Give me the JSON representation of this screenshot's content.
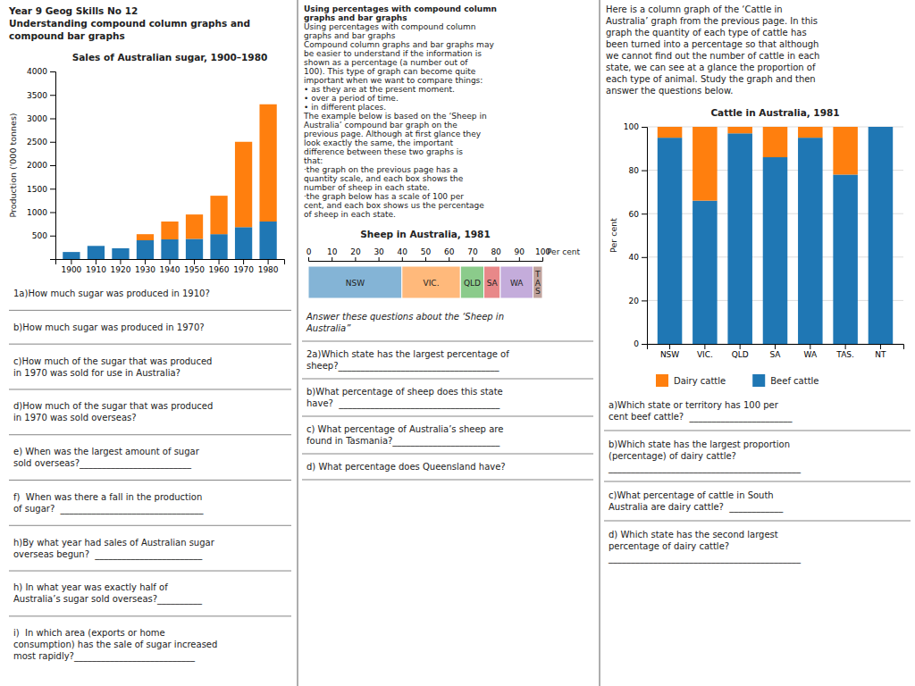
{
  "header": [
    "Year 9 Geog Skills No 12",
    "Understanding compound column graphs and",
    "compound bar graphs"
  ],
  "chart_data": [
    {
      "type": "bar",
      "stacked": true,
      "title": "Sales of Australian sugar, 1900–1980",
      "ylabel": "Production ('000 tonnes)",
      "categories": [
        "1900",
        "1910",
        "1920",
        "1930",
        "1940",
        "1950",
        "1960",
        "1970",
        "1980"
      ],
      "series": [
        {
          "values": [
            150,
            280,
            230,
            400,
            420,
            430,
            530,
            680,
            800
          ]
        },
        {
          "values": [
            0,
            0,
            0,
            130,
            380,
            520,
            820,
            1820,
            2500
          ]
        }
      ],
      "ylim": [
        0,
        4000
      ],
      "yticks": [
        500,
        1000,
        1500,
        2000,
        2500,
        3000,
        3500,
        4000
      ],
      "grid": false
    },
    {
      "type": "bar",
      "orientation": "horizontal",
      "stacked": true,
      "title": "Sheep in Australia, 1981",
      "xlabel": "Per cent",
      "categories": [
        null
      ],
      "series": [
        {
          "name": "NSW",
          "values": [
            40
          ]
        },
        {
          "name": "VIC.",
          "values": [
            25
          ]
        },
        {
          "name": "QLD",
          "values": [
            10
          ]
        },
        {
          "name": "SA",
          "values": [
            7
          ]
        },
        {
          "name": "WA",
          "values": [
            14
          ]
        },
        {
          "name": "T\nA\nS",
          "values": [
            4
          ]
        }
      ],
      "xlim": [
        0,
        100
      ],
      "xticks": [
        0,
        10,
        20,
        30,
        40,
        50,
        60,
        70,
        80,
        90,
        100
      ],
      "tick_labels": "x"
    },
    {
      "type": "bar",
      "stacked": true,
      "title": "Cattle in Australia, 1981",
      "ylabel": "Per cent",
      "categories": [
        "NSW",
        "VIC.",
        "QLD",
        "SA",
        "WA",
        "TAS.",
        "NT"
      ],
      "series": [
        {
          "name": "Beef cattle",
          "values": [
            95,
            66,
            97,
            86,
            95,
            78,
            100
          ]
        },
        {
          "name": "Dairy cattle",
          "values": [
            5,
            34,
            3,
            14,
            5,
            22,
            0
          ]
        }
      ],
      "ylim": [
        0,
        100
      ],
      "yticks": [
        0,
        20,
        40,
        60,
        80,
        100
      ],
      "grid": true,
      "legend": "bottom"
    }
  ],
  "middle_heading": [
    "Using percentages with compound column",
    "graphs and bar graphs"
  ],
  "middle_text": [
    "Using percentages with compound column",
    "graphs and bar graphs",
    "Compound column graphs and bar graphs may",
    "be easier to understand if the information is",
    "shown as a percentage (a number out of",
    "100). This type of graph can become quite",
    "important when we want to compare things:",
    "• as they are at the present moment.",
    "• over a period of time.",
    "• in different places.",
    "The example below is based on the ‘Sheep in",
    "Australia’ compound bar graph on the",
    "previous page. Although at first glance they",
    "look exactly the same, the important",
    "difference between these two graphs is",
    "that:",
    "·the graph on the previous page has a",
    "quantity scale, and each box shows the",
    "number of sheep in each state.",
    "·the graph below has a scale of 100 per",
    "cent, and each box shows us the percentage",
    "of sheep in each state."
  ],
  "right_text": [
    "Here is a column graph of the ‘Cattle in",
    "Australia’ graph from the previous page. In this",
    "graph the quantity of each type of cattle has",
    "been turned into a percentage so that although",
    "we cannot find out the number of cattle in each",
    "state, we can see at a glance the proportion of",
    "each type of animal. Study the graph and then",
    "answer the questions below."
  ],
  "questions_left": [
    [
      "1a)How much sugar was produced in 1910?"
    ],
    [
      "b)How much sugar was produced in 1970?"
    ],
    [
      "c)How much of the sugar that was produced",
      "in 1970 was sold for use in Australia?"
    ],
    [
      "d)How much of the sugar that was produced",
      "in 1970 was sold overseas?"
    ],
    [
      "e) When was the largest amount of sugar",
      "sold overseas?_________________________"
    ],
    [
      "f)  When was there a fall in the production",
      "of sugar?  ________________________________"
    ],
    [
      "h)By what year had sales of Australian sugar",
      "overseas begun?  ________________________"
    ],
    [
      "h) In what year was exactly half of",
      "Australia’s sugar sold overseas?__________"
    ],
    [
      "i)  In which area (exports or home",
      "consumption) has the sale of sugar increased",
      "most rapidly?___________________________"
    ]
  ],
  "questions_middle_intro": [
    [
      "Answer these questions about the ‘Sheep in",
      "Australia”"
    ]
  ],
  "questions_middle": [
    [
      "2a)Which state has the largest percentage of",
      "sheep?____________________________________"
    ],
    [
      "b)What percentage of sheep does this state",
      "have?  ____________________________________"
    ],
    [
      "c) What percentage of Australia’s sheep are",
      "found in Tasmania?________________________"
    ],
    [
      "d) What percentage does Queensland have?"
    ]
  ],
  "questions_right": [
    [
      "a)Which state or territory has 100 per",
      "cent beef cattle?  _______________________"
    ],
    [
      "b)Which state has the largest proportion",
      "(percentage) of dairy cattle?",
      "___________________________________________"
    ],
    [
      "c)What percentage of cattle in South",
      "Australia are dairy cattle?  ____________"
    ],
    [
      "d) Which state has the second largest",
      "percentage of dairy cattle?",
      "___________________________________________"
    ]
  ]
}
